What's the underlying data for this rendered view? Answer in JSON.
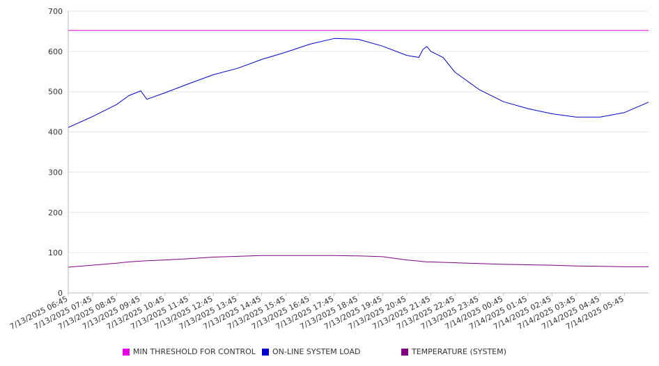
{
  "chart_data": {
    "type": "line",
    "title": "",
    "xlabel": "",
    "ylabel": "",
    "ylim": [
      0,
      700
    ],
    "y_ticks": [
      0,
      100,
      200,
      300,
      400,
      500,
      600,
      700
    ],
    "grid": true,
    "legend_position": "bottom",
    "x_start": "7/13/2025 06:45",
    "x_end": "7/14/2025 06:45",
    "x_tick_labels": [
      "7/13/2025 06:45",
      "7/13/2025 07:45",
      "7/13/2025 08:45",
      "7/13/2025 09:45",
      "7/13/2025 10:45",
      "7/13/2025 11:45",
      "7/13/2025 12:45",
      "7/13/2025 13:45",
      "7/13/2025 14:45",
      "7/13/2025 15:45",
      "7/13/2025 16:45",
      "7/13/2025 17:45",
      "7/13/2025 18:45",
      "7/13/2025 19:45",
      "7/13/2025 20:45",
      "7/13/2025 21:45",
      "7/13/2025 22:45",
      "7/13/2025 23:45",
      "7/14/2025 00:45",
      "7/14/2025 01:45",
      "7/14/2025 02:45",
      "7/14/2025 03:45",
      "7/14/2025 04:45",
      "7/14/2025 05:45"
    ],
    "x": [
      "7/13/2025 06:45",
      "7/13/2025 07:45",
      "7/13/2025 08:45",
      "7/13/2025 09:15",
      "7/13/2025 09:45",
      "7/13/2025 10:00",
      "7/13/2025 10:45",
      "7/13/2025 11:45",
      "7/13/2025 12:45",
      "7/13/2025 13:45",
      "7/13/2025 14:45",
      "7/13/2025 15:45",
      "7/13/2025 16:45",
      "7/13/2025 17:45",
      "7/13/2025 18:45",
      "7/13/2025 19:45",
      "7/13/2025 20:45",
      "7/13/2025 21:15",
      "7/13/2025 21:25",
      "7/13/2025 21:35",
      "7/13/2025 21:45",
      "7/13/2025 22:15",
      "7/13/2025 22:45",
      "7/13/2025 23:45",
      "7/14/2025 00:45",
      "7/14/2025 01:45",
      "7/14/2025 02:45",
      "7/14/2025 03:45",
      "7/14/2025 04:45",
      "7/14/2025 05:45",
      "7/14/2025 06:45"
    ],
    "series": [
      {
        "name": "MIN THRESHOLD FOR CONTROL",
        "color": "#e600e6",
        "values": [
          652,
          652,
          652,
          652,
          652,
          652,
          652,
          652,
          652,
          652,
          652,
          652,
          652,
          652,
          652,
          652,
          652,
          652,
          652,
          652,
          652,
          652,
          652,
          652,
          652,
          652,
          652,
          652,
          652,
          652,
          652
        ]
      },
      {
        "name": "ON-LINE SYSTEM LOAD",
        "color": "#0000cc",
        "values": [
          411,
          438,
          468,
          490,
          502,
          481,
          497,
          520,
          542,
          558,
          580,
          598,
          618,
          632,
          630,
          613,
          590,
          585,
          605,
          612,
          600,
          585,
          548,
          505,
          475,
          458,
          445,
          437,
          437,
          448,
          474
        ]
      },
      {
        "name": "TEMPERATURE (SYSTEM)",
        "color": "#800080",
        "values": [
          64,
          69,
          74,
          77,
          79,
          80,
          82,
          85,
          89,
          91,
          93,
          93,
          93,
          93,
          92,
          90,
          82,
          79,
          78,
          77,
          77,
          76,
          75,
          73,
          71,
          70,
          69,
          67,
          66,
          65,
          65
        ]
      }
    ]
  }
}
